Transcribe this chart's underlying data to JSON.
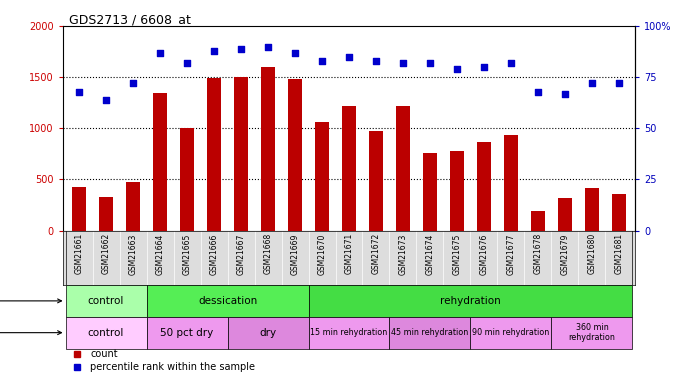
{
  "title": "GDS2713 / 6608_at",
  "samples": [
    "GSM21661",
    "GSM21662",
    "GSM21663",
    "GSM21664",
    "GSM21665",
    "GSM21666",
    "GSM21667",
    "GSM21668",
    "GSM21669",
    "GSM21670",
    "GSM21671",
    "GSM21672",
    "GSM21673",
    "GSM21674",
    "GSM21675",
    "GSM21676",
    "GSM21677",
    "GSM21678",
    "GSM21679",
    "GSM21680",
    "GSM21681"
  ],
  "counts": [
    430,
    325,
    480,
    1350,
    1000,
    1490,
    1500,
    1600,
    1480,
    1060,
    1220,
    970,
    1220,
    760,
    780,
    870,
    940,
    190,
    320,
    420,
    360
  ],
  "percentile": [
    68,
    64,
    72,
    87,
    82,
    88,
    89,
    90,
    87,
    83,
    85,
    83,
    82,
    82,
    79,
    80,
    82,
    68,
    67,
    72,
    72
  ],
  "ylim_left": [
    0,
    2000
  ],
  "ylim_right": [
    0,
    100
  ],
  "yticks_left": [
    0,
    500,
    1000,
    1500,
    2000
  ],
  "yticks_right": [
    0,
    25,
    50,
    75,
    100
  ],
  "bar_color": "#bb0000",
  "dot_color": "#0000cc",
  "bg_color": "#ffffff",
  "xticklabel_bg": "#dddddd",
  "protocol_groups": [
    {
      "label": "control",
      "start": 0,
      "end": 3,
      "color": "#aaffaa"
    },
    {
      "label": "dessication",
      "start": 3,
      "end": 9,
      "color": "#55ee55"
    },
    {
      "label": "rehydration",
      "start": 9,
      "end": 21,
      "color": "#44dd44"
    }
  ],
  "other_groups": [
    {
      "label": "control",
      "start": 0,
      "end": 3,
      "color": "#ffccff"
    },
    {
      "label": "50 pct dry",
      "start": 3,
      "end": 6,
      "color": "#ee99ee"
    },
    {
      "label": "dry",
      "start": 6,
      "end": 9,
      "color": "#dd88dd"
    },
    {
      "label": "15 min rehydration",
      "start": 9,
      "end": 12,
      "color": "#ee99ee"
    },
    {
      "label": "45 min rehydration",
      "start": 12,
      "end": 15,
      "color": "#dd88dd"
    },
    {
      "label": "90 min rehydration",
      "start": 15,
      "end": 18,
      "color": "#ee99ee"
    },
    {
      "label": "360 min\nrehydration",
      "start": 18,
      "end": 21,
      "color": "#ee99ee"
    }
  ],
  "bar_color_legend": "#bb0000",
  "dot_color_legend": "#0000cc",
  "axis_label_color_left": "#cc0000",
  "axis_label_color_right": "#0000bb"
}
